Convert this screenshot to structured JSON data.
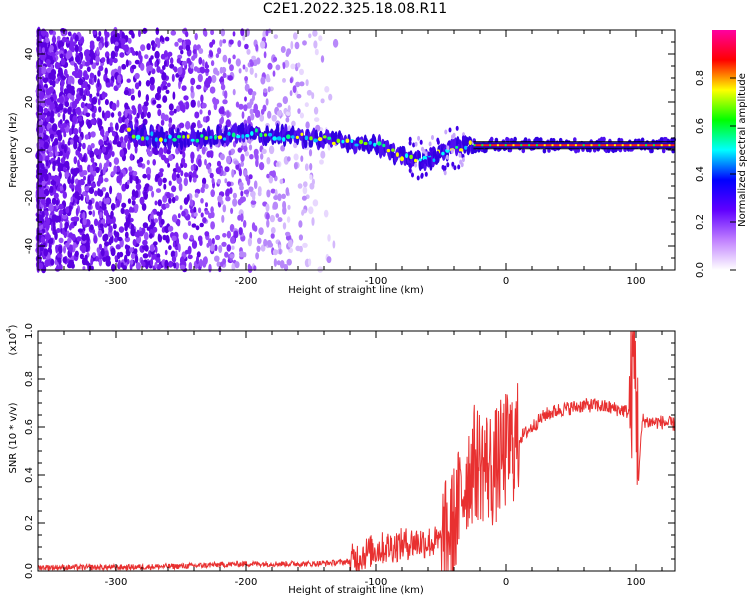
{
  "title": "C2E1.2022.325.18.08.R11",
  "chart_data": [
    {
      "type": "heatmap",
      "name": "spectrogram",
      "xlabel": "Height of straight line (km)",
      "ylabel": "Frequency (Hz)",
      "xlim": [
        -360,
        130
      ],
      "ylim": [
        -50,
        50
      ],
      "xticks": [
        -300,
        -200,
        -100,
        0,
        100
      ],
      "yticks": [
        -40,
        -20,
        0,
        20,
        40
      ],
      "tick_labels_x": [
        "-300",
        "-200",
        "-100",
        "0",
        "100"
      ],
      "tick_labels_y": [
        "-40",
        "-20",
        "0",
        "20",
        "40"
      ],
      "colorbar": {
        "label": "Normalized spectral amplitude",
        "range": [
          0.0,
          1.0
        ],
        "ticks": [
          0.0,
          0.2,
          0.4,
          0.6,
          0.8
        ],
        "tick_labels": [
          "0.0",
          "0.2",
          "0.4",
          "0.6",
          "0.8"
        ],
        "colors": [
          "#ffffff",
          "#c080ff",
          "#6000ff",
          "#0000ff",
          "#00ffff",
          "#00ff00",
          "#ffff00",
          "#ff0000",
          "#ff00a0"
        ]
      },
      "ridge": {
        "description_x": [
          -290,
          -250,
          -200,
          -150,
          -120,
          -100,
          -80,
          -60,
          -40,
          -25,
          0,
          50,
          100,
          130
        ],
        "frequency_hz": [
          7,
          4,
          7,
          5,
          3,
          2,
          -3,
          -4,
          1,
          2,
          2,
          2,
          2,
          2
        ]
      }
    },
    {
      "type": "line",
      "name": "snr",
      "xlabel": "Height of straight line (km)",
      "ylabel": "SNR (10 * v/v)",
      "y_scale_label": "(x10",
      "y_scale_exp": "4",
      "y_scale_close": ")",
      "xlim": [
        -360,
        130
      ],
      "ylim": [
        0.0,
        1.0
      ],
      "xticks": [
        -300,
        -200,
        -100,
        0,
        100
      ],
      "yticks": [
        0.0,
        0.2,
        0.4,
        0.6,
        0.8,
        1.0
      ],
      "tick_labels_x": [
        "-300",
        "-200",
        "-100",
        "0",
        "100"
      ],
      "tick_labels_y": [
        "0.0",
        "0.2",
        "0.4",
        "0.6",
        "0.8",
        "1.0"
      ],
      "color": "#e83030",
      "series": [
        {
          "name": "SNR",
          "x": [
            -360,
            -300,
            -250,
            -200,
            -150,
            -130,
            -120,
            -110,
            -100,
            -90,
            -80,
            -70,
            -60,
            -50,
            -45,
            -40,
            -35,
            -30,
            -25,
            -20,
            -15,
            -10,
            -5,
            0,
            10,
            20,
            30,
            40,
            50,
            60,
            70,
            80,
            90,
            95,
            98,
            100,
            102,
            105,
            110,
            120,
            130
          ],
          "y": [
            0.015,
            0.015,
            0.02,
            0.03,
            0.03,
            0.035,
            0.04,
            0.07,
            0.09,
            0.1,
            0.11,
            0.12,
            0.12,
            0.12,
            0.14,
            0.2,
            0.3,
            0.4,
            0.45,
            0.45,
            0.44,
            0.42,
            0.46,
            0.5,
            0.55,
            0.6,
            0.65,
            0.67,
            0.68,
            0.69,
            0.69,
            0.68,
            0.67,
            0.66,
            0.9,
            0.8,
            0.4,
            0.63,
            0.62,
            0.62,
            0.61
          ]
        }
      ]
    }
  ]
}
